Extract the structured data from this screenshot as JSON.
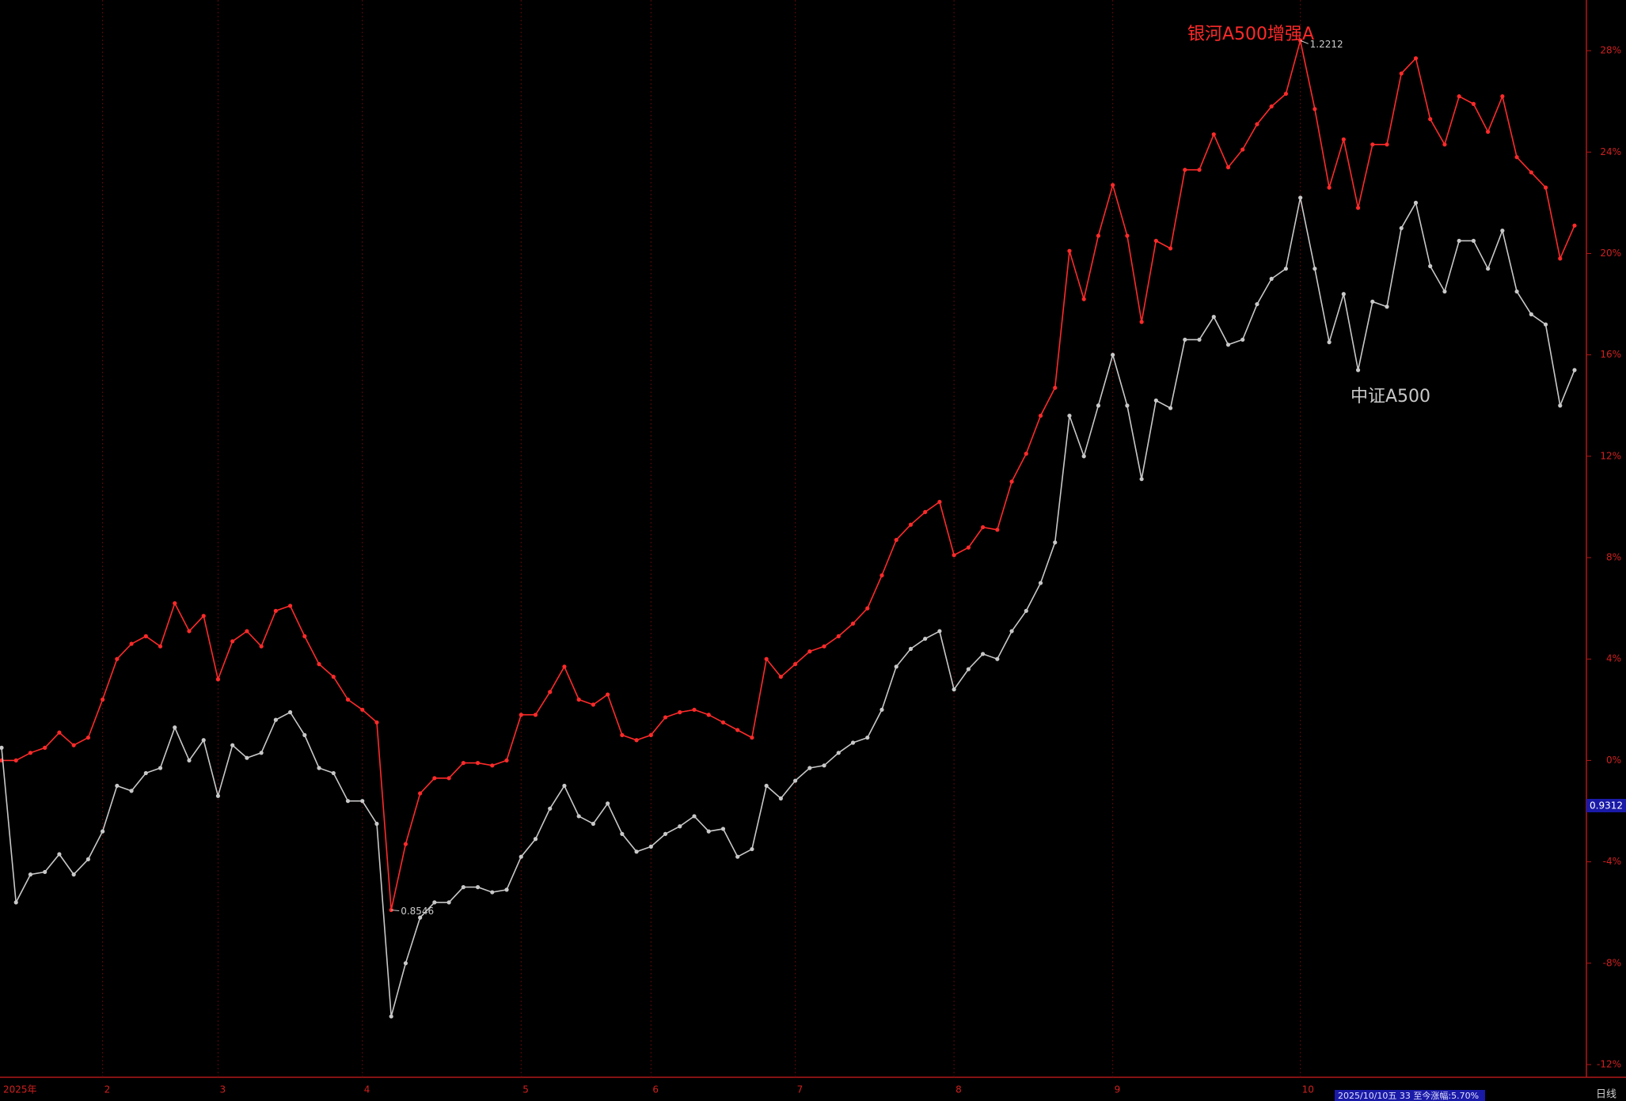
{
  "chart_data": {
    "type": "line",
    "categories": [
      "2025年",
      null,
      null,
      null,
      null,
      null,
      null,
      "2",
      null,
      null,
      null,
      null,
      null,
      null,
      null,
      "3",
      null,
      null,
      null,
      null,
      null,
      null,
      null,
      null,
      null,
      "4",
      null,
      null,
      null,
      null,
      null,
      null,
      null,
      null,
      null,
      null,
      "5",
      null,
      null,
      null,
      null,
      null,
      null,
      null,
      null,
      "6",
      null,
      null,
      null,
      null,
      null,
      null,
      null,
      null,
      null,
      "7",
      null,
      null,
      null,
      null,
      null,
      null,
      null,
      null,
      null,
      null,
      "8",
      null,
      null,
      null,
      null,
      null,
      null,
      null,
      null,
      null,
      null,
      "9",
      null,
      null,
      null,
      null,
      null,
      null,
      null,
      null,
      null,
      null,
      null,
      null,
      "10",
      null,
      null,
      null,
      null,
      null,
      null,
      null,
      null,
      null,
      null,
      null,
      null,
      null,
      null,
      null,
      null,
      null,
      null,
      null
    ],
    "series": [
      {
        "name": "银河A500增强A",
        "color": "#ff2a2a",
        "values": [
          0,
          0,
          0.3,
          0.5,
          1.1,
          0.6,
          0.9,
          2.4,
          4.0,
          4.6,
          4.9,
          4.5,
          6.2,
          5.1,
          5.7,
          3.2,
          4.7,
          5.1,
          4.5,
          5.9,
          6.1,
          4.9,
          3.8,
          3.3,
          2.4,
          2.0,
          1.5,
          -5.9,
          -3.3,
          -1.3,
          -0.7,
          -0.7,
          -0.1,
          -0.1,
          -0.2,
          0,
          1.8,
          1.8,
          2.7,
          3.7,
          2.4,
          2.2,
          2.6,
          1.0,
          0.8,
          1.0,
          1.7,
          1.9,
          2.0,
          1.8,
          1.5,
          1.2,
          0.9,
          4.0,
          3.3,
          3.8,
          4.3,
          4.5,
          4.9,
          5.4,
          6.0,
          7.3,
          8.7,
          9.3,
          9.8,
          10.2,
          8.1,
          8.4,
          9.2,
          9.1,
          11.0,
          12.1,
          13.6,
          14.7,
          20.1,
          18.2,
          20.7,
          22.7,
          20.7,
          17.3,
          20.5,
          20.2,
          23.3,
          23.3,
          24.7,
          23.4,
          24.1,
          25.1,
          25.8,
          26.3,
          28.4,
          25.7,
          22.6,
          24.5,
          21.8,
          24.3,
          24.3,
          27.1,
          27.7,
          25.3,
          24.3,
          26.2,
          25.9,
          24.8,
          26.2,
          23.8,
          23.2,
          22.6,
          19.8,
          21.1
        ]
      },
      {
        "name": "中证A500",
        "color": "#c8c8c8",
        "values": [
          0.5,
          -5.6,
          -4.5,
          -4.4,
          -3.7,
          -4.5,
          -3.9,
          -2.8,
          -1.0,
          -1.2,
          -0.5,
          -0.3,
          1.3,
          0.0,
          0.8,
          -1.4,
          0.6,
          0.1,
          0.3,
          1.6,
          1.9,
          1.0,
          -0.3,
          -0.5,
          -1.6,
          -1.6,
          -2.5,
          -10.1,
          -8.0,
          -6.2,
          -5.6,
          -5.6,
          -5.0,
          -5.0,
          -5.2,
          -5.1,
          -3.8,
          -3.1,
          -1.9,
          -1.0,
          -2.2,
          -2.5,
          -1.7,
          -2.9,
          -3.6,
          -3.4,
          -2.9,
          -2.6,
          -2.2,
          -2.8,
          -2.7,
          -3.8,
          -3.5,
          -1.0,
          -1.5,
          -0.8,
          -0.3,
          -0.2,
          0.3,
          0.7,
          0.9,
          2.0,
          3.7,
          4.4,
          4.8,
          5.1,
          2.8,
          3.6,
          4.2,
          4.0,
          5.1,
          5.9,
          7.0,
          8.6,
          13.6,
          12.0,
          14.0,
          16.0,
          14.0,
          11.1,
          14.2,
          13.9,
          16.6,
          16.6,
          17.5,
          16.4,
          16.6,
          18.0,
          19.0,
          19.4,
          22.2,
          19.4,
          16.5,
          18.4,
          15.4,
          18.1,
          17.9,
          21.0,
          22.0,
          19.5,
          18.5,
          20.5,
          20.5,
          19.4,
          20.9,
          18.5,
          17.6,
          17.2,
          14.0,
          15.4
        ]
      }
    ],
    "ylim": [
      -12.5,
      30
    ],
    "yticks": [
      {
        "value": -12,
        "label": "-12%"
      },
      {
        "value": -8,
        "label": "-8%"
      },
      {
        "value": -4,
        "label": "-4%"
      },
      {
        "value": 0,
        "label": "0%"
      },
      {
        "value": 4,
        "label": "4%"
      },
      {
        "value": 8,
        "label": "8%"
      },
      {
        "value": 12,
        "label": "12%"
      },
      {
        "value": 16,
        "label": "16%"
      },
      {
        "value": 20,
        "label": "20%"
      },
      {
        "value": 24,
        "label": "24%"
      },
      {
        "value": 28,
        "label": "28%"
      }
    ],
    "max_label": 1.2212,
    "min_label": 0.8546,
    "current_label": 0.9312,
    "status_text": "2025/10/10五 33 至今涨幅:5.70%",
    "period_label": "日线",
    "grid": true
  }
}
